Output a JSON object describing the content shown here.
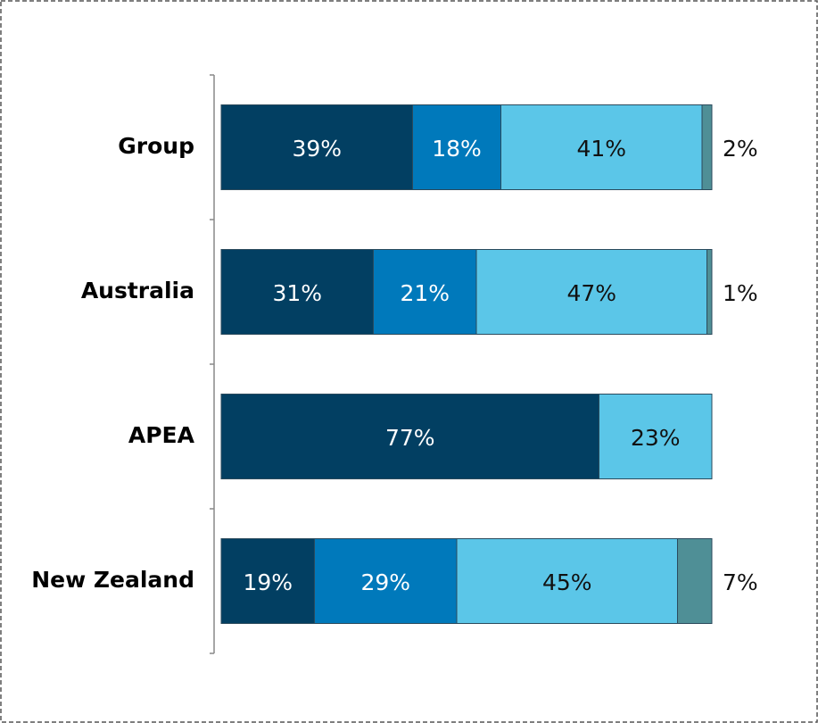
{
  "chart_data": {
    "type": "stacked-barh",
    "categories": [
      "Group",
      "Australia",
      "APEA",
      "New Zealand"
    ],
    "series": [
      {
        "color": "#023f62",
        "values": [
          39,
          31,
          77,
          19
        ],
        "value_labels": [
          "39%",
          "31%",
          "77%",
          "19%"
        ]
      },
      {
        "color": "#0079bb",
        "values": [
          18,
          21,
          null,
          29
        ],
        "value_labels": [
          "18%",
          "21%",
          null,
          "29%"
        ]
      },
      {
        "color": "#5bc6e8",
        "values": [
          41,
          47,
          23,
          45
        ],
        "value_labels": [
          "41%",
          "47%",
          "23%",
          "45%"
        ]
      },
      {
        "color": "#4f8f96",
        "values": [
          2,
          1,
          null,
          7
        ],
        "value_labels": [
          "2%",
          "1%",
          null,
          "7%"
        ]
      }
    ],
    "xlim": [
      0,
      100
    ]
  }
}
